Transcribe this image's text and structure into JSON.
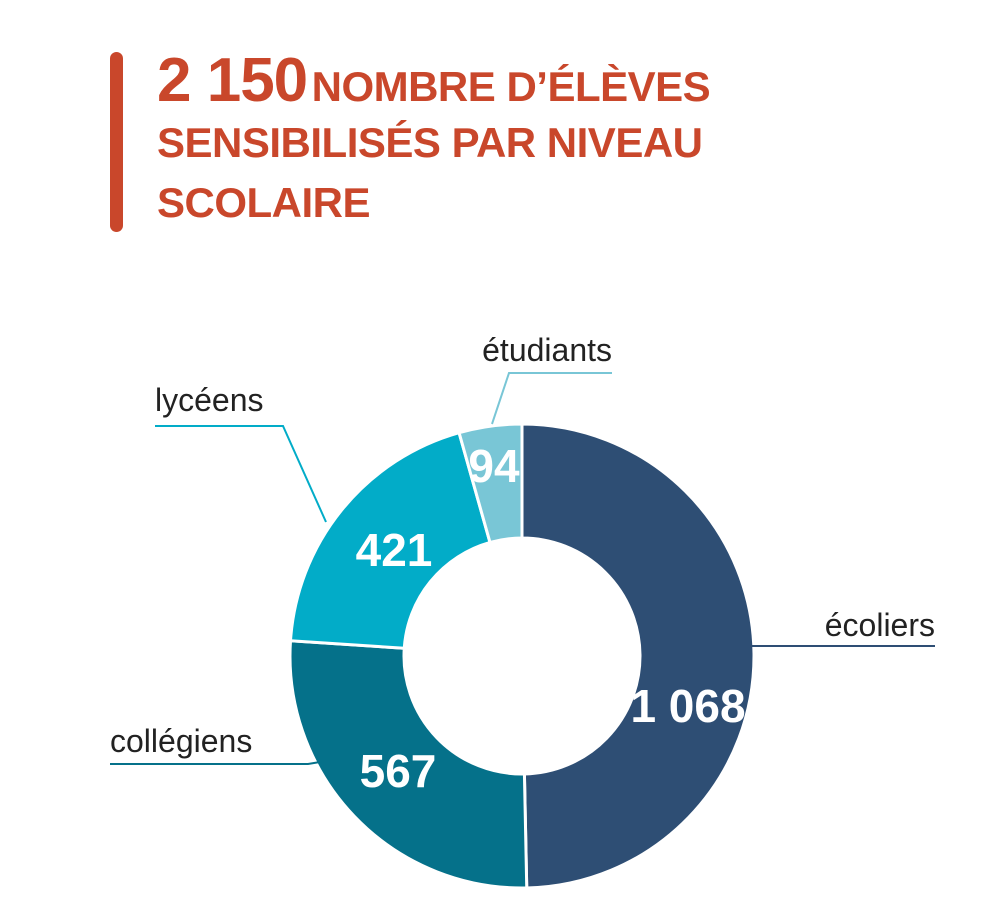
{
  "header": {
    "total": "2 150",
    "title_line1": "NOMBRE D’ÉLÈVES",
    "title_line2": "SENSIBILISÉS PAR NIVEAU",
    "title_line3": "SCOLAIRE"
  },
  "colors": {
    "accent": "#c9472b",
    "ecoliers": "#2e4e74",
    "collegiens": "#05718a",
    "lyceens": "#02acc8",
    "etudiants": "#79c6d6"
  },
  "chart_data": {
    "type": "pie",
    "donut": true,
    "total": 2150,
    "slices": [
      {
        "label": "écoliers",
        "value": 1068,
        "value_label": "1 068",
        "color": "#2e4e74"
      },
      {
        "label": "collégiens",
        "value": 567,
        "value_label": "567",
        "color": "#05718a"
      },
      {
        "label": "lycéens",
        "value": 421,
        "value_label": "421",
        "color": "#02acc8"
      },
      {
        "label": "étudiants",
        "value": 94,
        "value_label": "94",
        "color": "#79c6d6"
      }
    ]
  }
}
